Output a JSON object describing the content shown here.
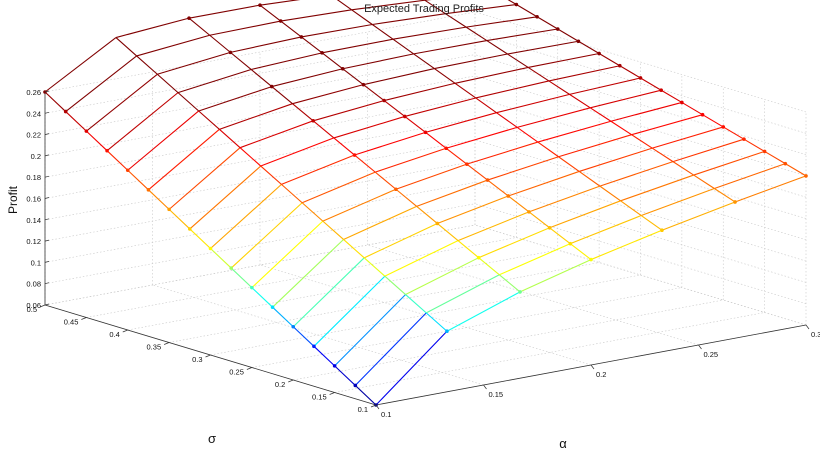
{
  "chart_data": {
    "type": "surface",
    "title": "Expected Trading Profits",
    "xlabel": "α",
    "ylabel": "σ",
    "zlabel": "Profit",
    "alpha_ticks": [
      "0.1",
      "0.15",
      "0.2",
      "0.25",
      "0.3"
    ],
    "sigma_ticks": [
      "0.1",
      "0.15",
      "0.2",
      "0.25",
      "0.3",
      "0.35",
      "0.4",
      "0.45",
      "0.5"
    ],
    "z_ticks": [
      "0.06",
      "0.08",
      "0.1",
      "0.12",
      "0.14",
      "0.16",
      "0.18",
      "0.2",
      "0.22",
      "0.24",
      "0.26"
    ],
    "alpha_range": [
      0.1,
      0.3
    ],
    "sigma_range": [
      0.1,
      0.5
    ],
    "zlim": [
      0.06,
      0.26
    ],
    "grid": true,
    "alpha_values": [
      0.1,
      0.133,
      0.167,
      0.2,
      0.233,
      0.267,
      0.3
    ],
    "sigma_values": [
      0.1,
      0.125,
      0.15,
      0.175,
      0.2,
      0.225,
      0.25,
      0.275,
      0.3,
      0.325,
      0.35,
      0.375,
      0.4,
      0.425,
      0.45,
      0.475,
      0.5
    ],
    "profit_alpha_low_end": 0.06,
    "profit_alpha_high_end": 0.2,
    "profit_sigma_low_end": 0.06,
    "profit_sigma_high_end": 0.26,
    "colormap": [
      "#00008f",
      "#0000ff",
      "#00ffff",
      "#ffff00",
      "#ff8000",
      "#ff0000",
      "#800000"
    ]
  }
}
